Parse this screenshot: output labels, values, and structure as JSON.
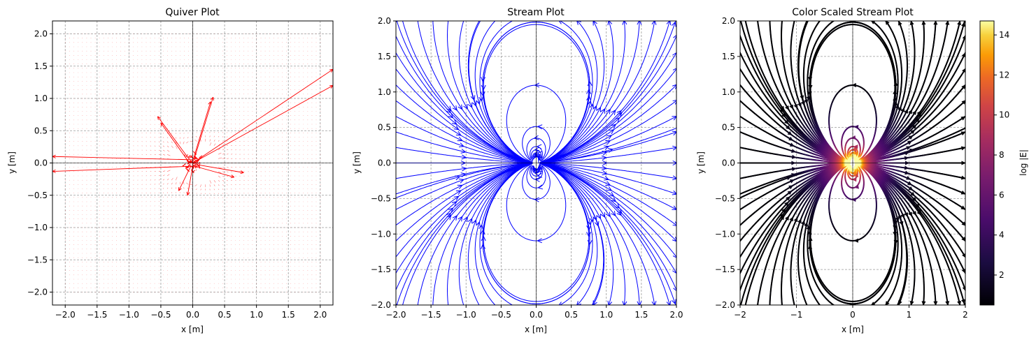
{
  "chart_data": [
    {
      "type": "quiver",
      "title": "Quiver Plot",
      "xlabel": "x [m]",
      "ylabel": "y [m]",
      "xlim": [
        -2.2,
        2.2
      ],
      "ylim": [
        -2.2,
        2.2
      ],
      "xticks": [
        -2.0,
        -1.5,
        -1.0,
        -0.5,
        0.0,
        0.5,
        1.0,
        1.5,
        2.0
      ],
      "yticks": [
        -2.0,
        -1.5,
        -1.0,
        -0.5,
        0.0,
        0.5,
        1.0,
        1.5,
        2.0
      ],
      "xtick_labels": [
        "−2.0",
        "−1.5",
        "−1.0",
        "−0.5",
        "0.0",
        "0.5",
        "1.0",
        "1.5",
        "2.0"
      ],
      "ytick_labels": [
        "−2.0",
        "−1.5",
        "−1.0",
        "−0.5",
        "0.0",
        "0.5",
        "1.0",
        "1.5",
        "2.0"
      ],
      "color": "#ff0000",
      "grid": true,
      "field_region": {
        "x": [
          -2.0,
          2.0
        ],
        "y": [
          -2.0,
          2.0
        ]
      },
      "long_vectors": [
        {
          "x0": 0.0,
          "y0": 0.0,
          "x1": 2.2,
          "y1": 1.45
        },
        {
          "x0": 0.0,
          "y0": 0.0,
          "x1": 2.2,
          "y1": 1.2
        },
        {
          "x0": 0.0,
          "y0": 0.05,
          "x1": -2.2,
          "y1": 0.1
        },
        {
          "x0": 0.0,
          "y0": -0.05,
          "x1": -2.2,
          "y1": -0.13
        },
        {
          "x0": 0.02,
          "y0": 0.05,
          "x1": 0.32,
          "y1": 1.02
        },
        {
          "x0": 0.0,
          "y0": 0.03,
          "x1": 0.28,
          "y1": 0.95
        },
        {
          "x0": -0.05,
          "y0": 0.05,
          "x1": -0.55,
          "y1": 0.72
        },
        {
          "x0": -0.05,
          "y0": 0.0,
          "x1": -0.5,
          "y1": 0.62
        },
        {
          "x0": 0.03,
          "y0": -0.02,
          "x1": 0.8,
          "y1": -0.15
        },
        {
          "x0": 0.03,
          "y0": -0.05,
          "x1": 0.65,
          "y1": -0.22
        },
        {
          "x0": -0.03,
          "y0": -0.05,
          "x1": -0.22,
          "y1": -0.43
        },
        {
          "x0": 0.0,
          "y0": -0.05,
          "x1": -0.08,
          "y1": -0.5
        }
      ]
    },
    {
      "type": "streamplot",
      "title": "Stream Plot",
      "xlabel": "x [m]",
      "ylabel": "y [m]",
      "xlim": [
        -2.0,
        2.0
      ],
      "ylim": [
        -2.0,
        2.0
      ],
      "xticks": [
        -2.0,
        -1.5,
        -1.0,
        -0.5,
        0.0,
        0.5,
        1.0,
        1.5,
        2.0
      ],
      "yticks": [
        -2.0,
        -1.5,
        -1.0,
        -0.5,
        0.0,
        0.5,
        1.0,
        1.5,
        2.0
      ],
      "xtick_labels": [
        "−2.0",
        "−1.5",
        "−1.0",
        "−0.5",
        "0.0",
        "0.5",
        "1.0",
        "1.5",
        "2.0"
      ],
      "ytick_labels": [
        "−2.0",
        "−1.5",
        "−1.0",
        "−0.5",
        "0.0",
        "0.5",
        "1.0",
        "1.5",
        "2.0"
      ],
      "color": "#0000ff",
      "grid": true
    },
    {
      "type": "streamplot",
      "title": "Color Scaled Stream Plot",
      "xlabel": "x [m]",
      "ylabel": "y [m]",
      "xlim": [
        -2,
        2
      ],
      "ylim": [
        -2.0,
        2.0
      ],
      "xticks": [
        -2,
        -1,
        0,
        1,
        2
      ],
      "yticks": [
        -2.0,
        -1.5,
        -1.0,
        -0.5,
        0.0,
        0.5,
        1.0,
        1.5,
        2.0
      ],
      "xtick_labels": [
        "−2",
        "−1",
        "0",
        "1",
        "2"
      ],
      "ytick_labels": [
        "−2.0",
        "−1.5",
        "−1.0",
        "−0.5",
        "0.0",
        "0.5",
        "1.0",
        "1.5",
        "2.0"
      ],
      "colormap": "inferno",
      "grid": true,
      "colorbar": {
        "label": "log |E|",
        "range": [
          0.5,
          14.7
        ],
        "ticks": [
          2,
          4,
          6,
          8,
          10,
          12,
          14
        ],
        "tick_labels": [
          "2",
          "4",
          "6",
          "8",
          "10",
          "12",
          "14"
        ]
      }
    }
  ]
}
